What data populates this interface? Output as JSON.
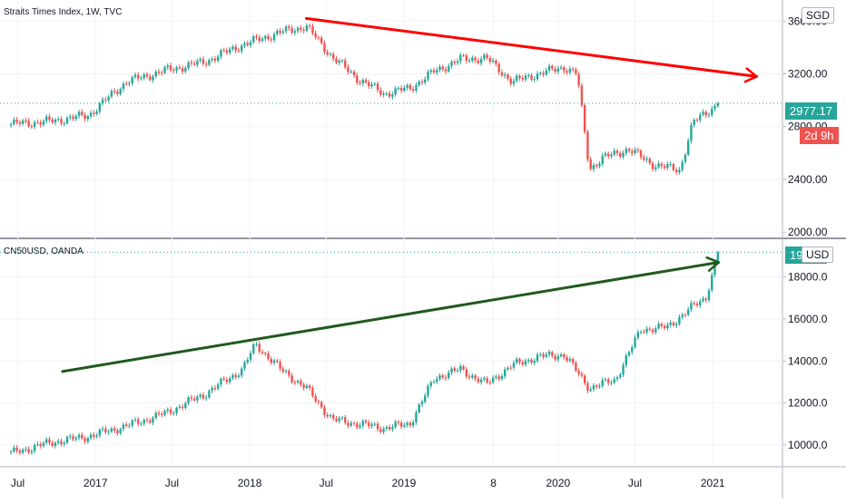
{
  "panes": [
    {
      "legend": "Straits Times Index, 1W, TVC",
      "currency": "SGD",
      "last_price": "2977.17",
      "countdown": "2d 9h",
      "price_scale": [
        "3600.00",
        "3200.00",
        "2800.00",
        "2400.00",
        "2000.00"
      ],
      "colors": {
        "up": "#26a69a",
        "down": "#ef5350",
        "trendline": "#ff0000"
      }
    },
    {
      "legend": "CN50USD, OANDA",
      "currency": "USD",
      "last_price": "19185",
      "price_scale": [
        "18000.0",
        "16000.0",
        "14000.0",
        "12000.0",
        "10000.0"
      ],
      "colors": {
        "up": "#26a69a",
        "down": "#ef5350",
        "trendline": "#1e5a1e"
      }
    }
  ],
  "time_axis": [
    "Jul",
    "2017",
    "Jul",
    "2018",
    "Jul",
    "2019",
    "8",
    "2020",
    "Jul",
    "2021"
  ],
  "chart_data": [
    {
      "type": "candlestick",
      "title": "Straits Times Index, 1W, TVC",
      "timeframe": "1W",
      "ylabel": "SGD",
      "ylim": [
        1960,
        3760
      ],
      "x": [
        "2016-06",
        "2016-09",
        "2016-12",
        "2017-03",
        "2017-06",
        "2017-09",
        "2017-12",
        "2018-03",
        "2018-05",
        "2018-07",
        "2018-09",
        "2018-11",
        "2019-01",
        "2019-03",
        "2019-05",
        "2019-07",
        "2019-09",
        "2019-11",
        "2020-01",
        "2020-02",
        "2020-03",
        "2020-04",
        "2020-06",
        "2020-08",
        "2020-10",
        "2020-11",
        "2021-01"
      ],
      "close": [
        2820,
        2840,
        2885,
        3140,
        3225,
        3290,
        3420,
        3515,
        3560,
        3330,
        3160,
        3050,
        3090,
        3220,
        3310,
        3320,
        3140,
        3200,
        3250,
        3200,
        2480,
        2560,
        2630,
        2510,
        2470,
        2830,
        2977.17
      ],
      "annotations": [
        {
          "type": "trendline",
          "color": "#ff0000",
          "from": [
            "2018-05",
            3620
          ],
          "to": [
            "2021-04",
            3180
          ],
          "arrow": true
        }
      ]
    },
    {
      "type": "candlestick",
      "title": "CN50USD, OANDA",
      "ylabel": "USD",
      "ylim": [
        9000,
        19800
      ],
      "x": [
        "2016-06",
        "2016-09",
        "2016-12",
        "2017-03",
        "2017-06",
        "2017-09",
        "2017-12",
        "2018-01",
        "2018-03",
        "2018-05",
        "2018-07",
        "2018-09",
        "2018-11",
        "2019-01",
        "2019-03",
        "2019-05",
        "2019-07",
        "2019-09",
        "2019-11",
        "2020-01",
        "2020-03",
        "2020-05",
        "2020-07",
        "2020-09",
        "2020-11",
        "2020-12",
        "2021-01"
      ],
      "close": [
        9600,
        10100,
        10400,
        10900,
        11500,
        12400,
        13600,
        14800,
        13600,
        12700,
        11200,
        11000,
        10800,
        11000,
        13200,
        13600,
        12900,
        13800,
        14200,
        14300,
        12700,
        13100,
        15500,
        15600,
        16600,
        17000,
        19185
      ],
      "annotations": [
        {
          "type": "trendline",
          "color": "#1e5a1e",
          "from": [
            "2016-10",
            13500
          ],
          "to": [
            "2021-01",
            18700
          ],
          "arrow": true
        }
      ]
    }
  ]
}
